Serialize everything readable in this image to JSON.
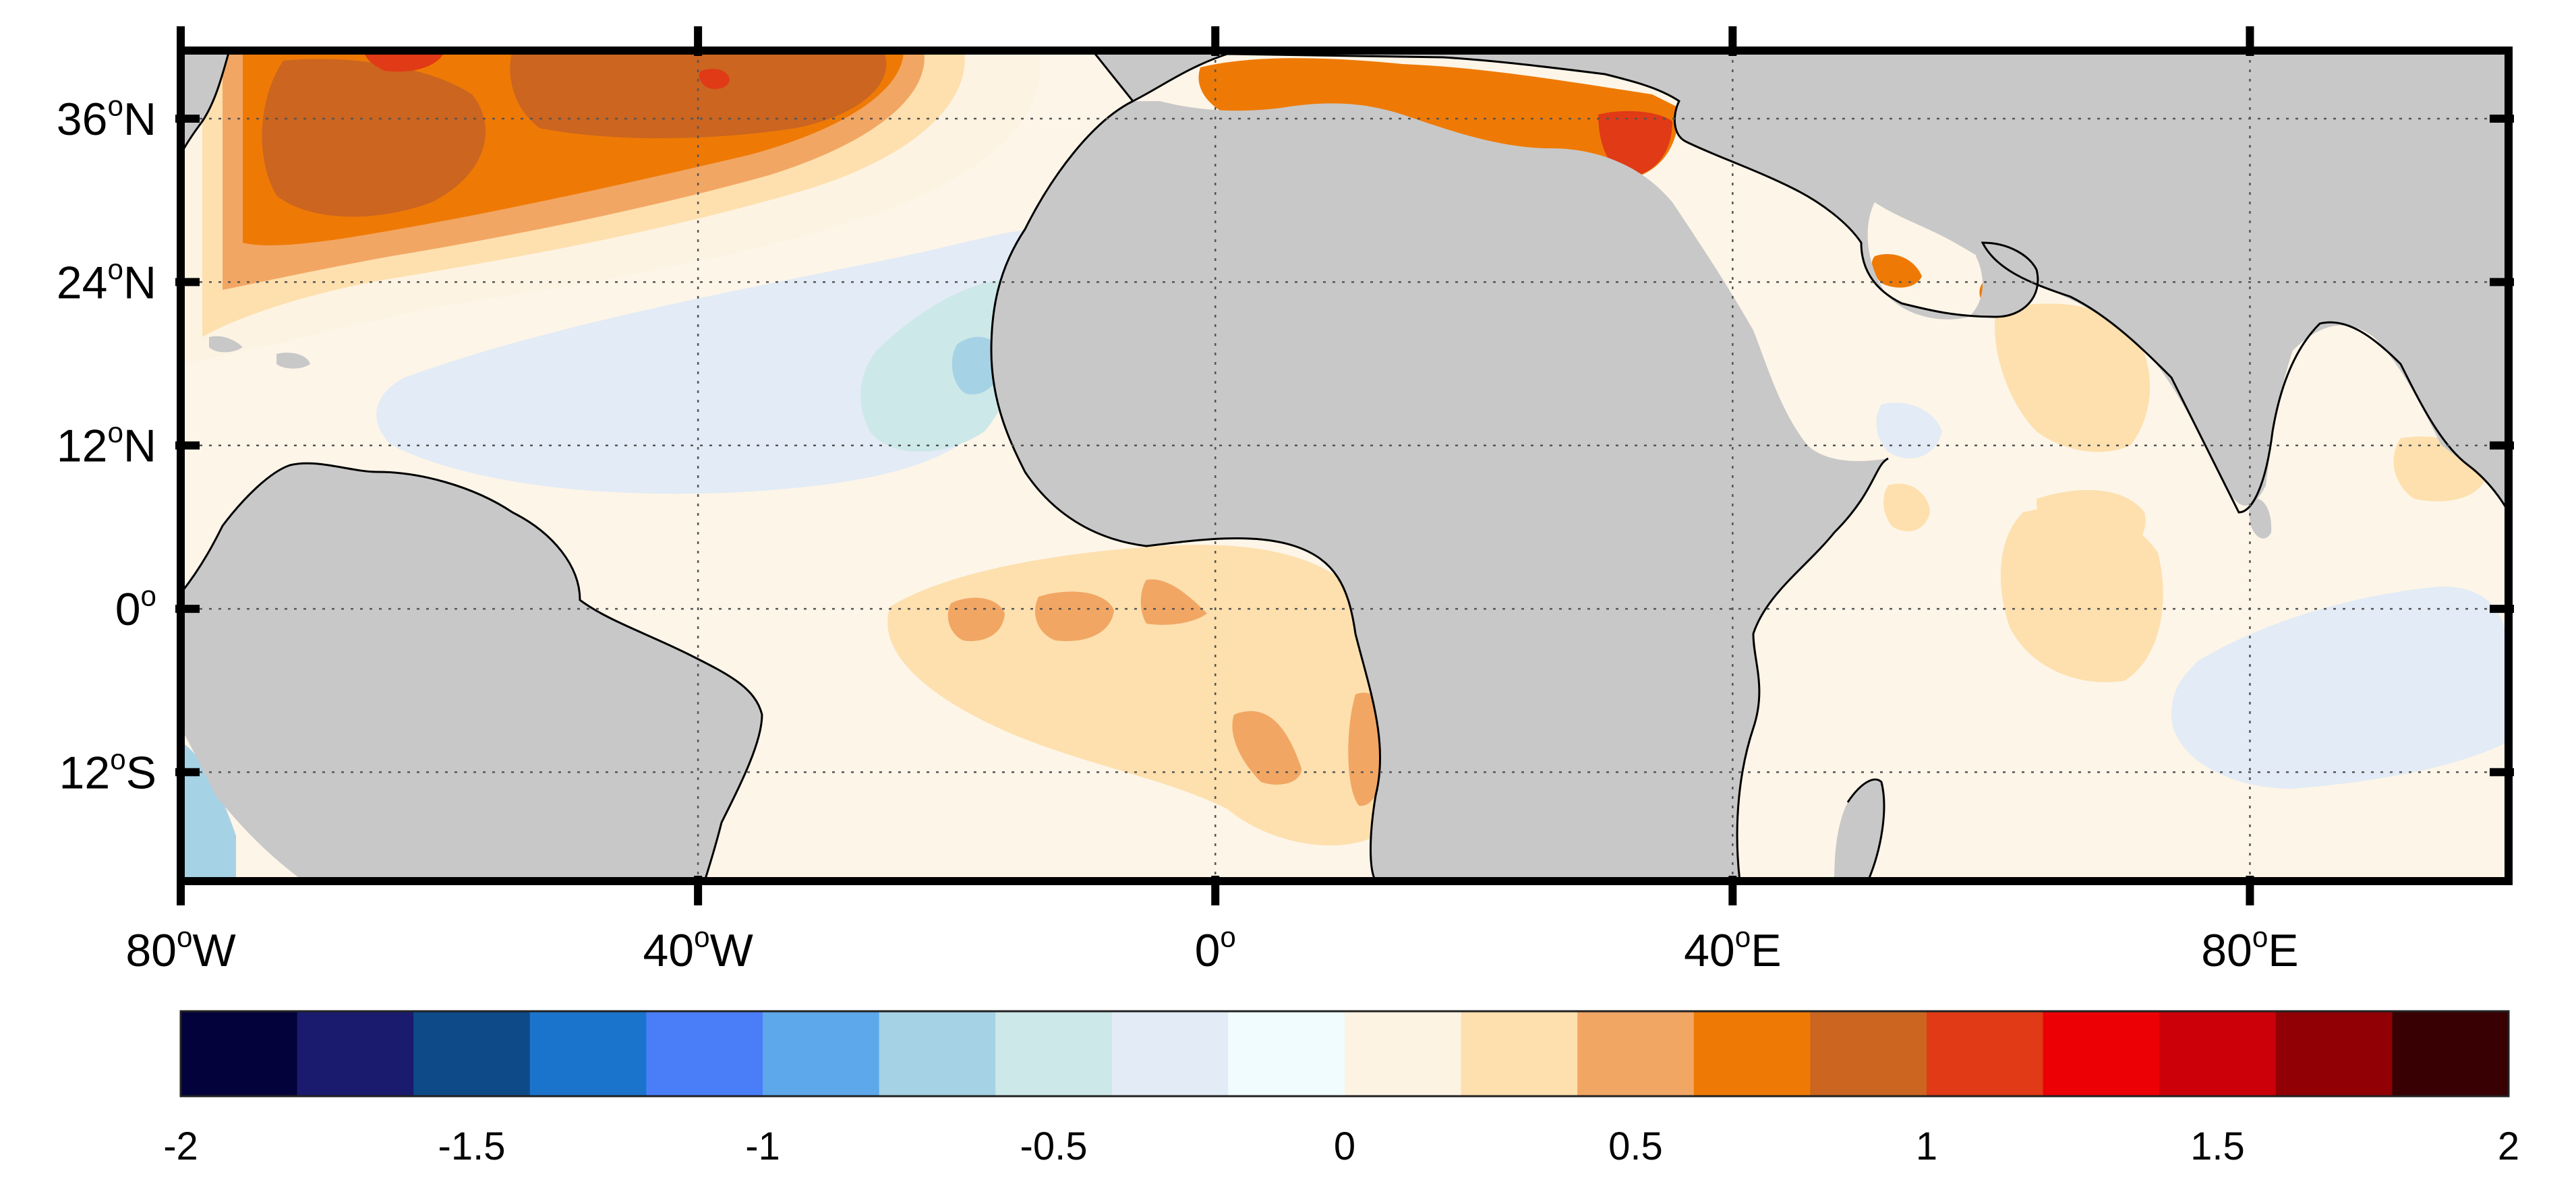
{
  "map": {
    "lon_range": [
      -80,
      100
    ],
    "lat_range": [
      -20,
      41
    ],
    "grid": "dotted",
    "land_color": "#c8c8c8",
    "coast_color": "#000000",
    "ocean_background": "#fdf5e8",
    "y_ticks": [
      {
        "value": 36,
        "num": "36",
        "deg": "o",
        "dir": "N"
      },
      {
        "value": 24,
        "num": "24",
        "deg": "o",
        "dir": "N"
      },
      {
        "value": 12,
        "num": "12",
        "deg": "o",
        "dir": "N"
      },
      {
        "value": 0,
        "num": "0",
        "deg": "o",
        "dir": ""
      },
      {
        "value": -12,
        "num": "12",
        "deg": "o",
        "dir": "S"
      }
    ],
    "x_ticks": [
      {
        "value": -80,
        "num": "80",
        "deg": "o",
        "dir": "W"
      },
      {
        "value": -40,
        "num": "40",
        "deg": "o",
        "dir": "W"
      },
      {
        "value": 0,
        "num": "0",
        "deg": "o",
        "dir": ""
      },
      {
        "value": 40,
        "num": "40",
        "deg": "o",
        "dir": "E"
      },
      {
        "value": 80,
        "num": "80",
        "deg": "o",
        "dir": "E"
      }
    ]
  },
  "colorbar": {
    "min": -2,
    "max": 2,
    "colors": [
      "#03023a",
      "#1a1a6e",
      "#0f4a88",
      "#1b74cc",
      "#4a7ef8",
      "#5da8ea",
      "#a6d2e6",
      "#cde8e8",
      "#e2ebf6",
      "#f0fcfd",
      "#fdf3e3",
      "#fde0ae",
      "#f2a664",
      "#ee7a05",
      "#cb6520",
      "#e03a16",
      "#ec0005",
      "#cb0009",
      "#900004",
      "#380002"
    ],
    "tick_labels": [
      {
        "value": -2,
        "label": "-2"
      },
      {
        "value": -1.5,
        "label": "-1.5"
      },
      {
        "value": -1,
        "label": "-1"
      },
      {
        "value": -0.5,
        "label": "-0.5"
      },
      {
        "value": 0,
        "label": "0"
      },
      {
        "value": 0.5,
        "label": "0.5"
      },
      {
        "value": 1,
        "label": "1"
      },
      {
        "value": 1.5,
        "label": "1.5"
      },
      {
        "value": 2,
        "label": "2"
      }
    ]
  },
  "anomaly_regions": [
    {
      "name": "north-atlantic-warm",
      "color": "#fdf3e3"
    },
    {
      "name": "north-atlantic-warm",
      "color": "#fde0ae"
    },
    {
      "name": "north-atlantic-warm",
      "color": "#f2a664"
    },
    {
      "name": "north-atlantic-warm",
      "color": "#ee7a05"
    },
    {
      "name": "north-atlantic-warm",
      "color": "#cb6520"
    },
    {
      "name": "north-atlantic-warm",
      "color": "#e03a16"
    },
    {
      "name": "subtropical-cool",
      "color": "#e2ebf6"
    },
    {
      "name": "subtropical-cool",
      "color": "#cde8e8"
    },
    {
      "name": "subtropical-cool",
      "color": "#a6d2e6"
    },
    {
      "name": "equatorial-atlantic-warm",
      "color": "#fde0ae"
    },
    {
      "name": "equatorial-atlantic-warm",
      "color": "#f2a664"
    },
    {
      "name": "mediterranean-warm",
      "color": "#ee7a05"
    },
    {
      "name": "mediterranean-warm",
      "color": "#e03a16"
    },
    {
      "name": "indian-ocean-warm",
      "color": "#fde0ae"
    },
    {
      "name": "indian-ocean-cool",
      "color": "#e2ebf6"
    }
  ]
}
